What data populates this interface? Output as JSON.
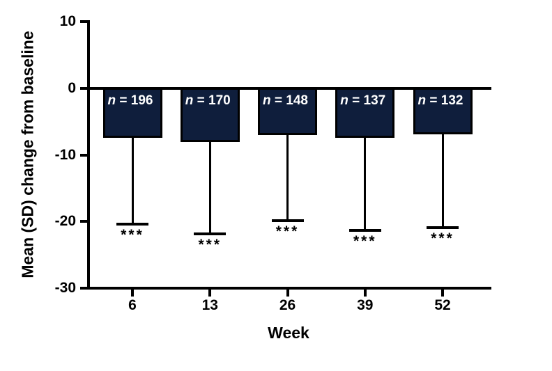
{
  "chart_data": {
    "type": "bar",
    "title": "",
    "xlabel": "Week",
    "ylabel": "Mean (SD) change from baseline",
    "categories": [
      "6",
      "13",
      "26",
      "39",
      "52"
    ],
    "ylim": [
      -30,
      10
    ],
    "yticks": [
      "10",
      "0",
      "-10",
      "-20",
      "-30"
    ],
    "ytick_values": [
      10,
      0,
      -10,
      -20,
      -30
    ],
    "grid": false,
    "legend": "none",
    "bar_direction": "downward-from-zero",
    "series": [
      {
        "name": "Mean (SD) change from baseline",
        "values": [
          -7.4,
          -8.0,
          -7.0,
          -7.4,
          -6.9
        ],
        "error_bar_ends": [
          -20.4,
          -21.8,
          -19.9,
          -21.3,
          -20.9
        ],
        "sd": [
          13.0,
          13.8,
          12.9,
          13.9,
          14.0
        ],
        "n": [
          196,
          170,
          148,
          137,
          132
        ],
        "n_labels": [
          "n = 196",
          "n = 170",
          "n = 148",
          "n = 137",
          "n = 132"
        ],
        "significance": [
          "***",
          "***",
          "***",
          "***",
          "***"
        ]
      }
    ],
    "colors": {
      "bar_fill": "#0f1e3c",
      "bar_border": "#000000",
      "axis": "#000000",
      "n_label_text": "#ffffff",
      "background": "#ffffff"
    }
  }
}
